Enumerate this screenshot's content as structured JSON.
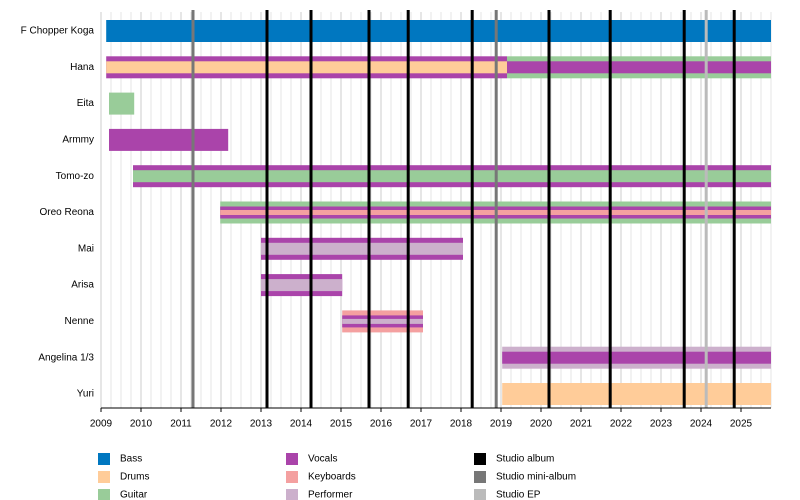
{
  "chart_data": {
    "type": "timeline",
    "xlim": [
      2009,
      2025.75
    ],
    "xticks": [
      2009,
      2010,
      2011,
      2012,
      2013,
      2014,
      2015,
      2016,
      2017,
      2018,
      2019,
      2020,
      2021,
      2022,
      2023,
      2024,
      2025
    ],
    "minor_grid_step": 0.25,
    "roles": [
      {
        "name": "Bass",
        "color": "#0077c0"
      },
      {
        "name": "Drums",
        "color": "#ffcc99"
      },
      {
        "name": "Guitar",
        "color": "#99cc99"
      },
      {
        "name": "Vocals",
        "color": "#aa44aa"
      },
      {
        "name": "Keyboards",
        "color": "#f4a0a0"
      },
      {
        "name": "Performer",
        "color": "#ccb0cc"
      }
    ],
    "releases": [
      {
        "name": "Studio album",
        "color": "#000000",
        "dates": [
          2013.15,
          2014.25,
          2015.7,
          2016.68,
          2018.28,
          2020.2,
          2021.73,
          2023.58,
          2024.83
        ]
      },
      {
        "name": "Studio mini-album",
        "color": "#777777",
        "dates": [
          2011.3,
          2018.88
        ]
      },
      {
        "name": "Studio EP",
        "color": "#bbbbbb",
        "dates": [
          2024.13
        ]
      }
    ],
    "members": [
      {
        "name": "F Chopper Koga",
        "layers": [
          [
            {
              "role": "Bass",
              "start": 2009.13,
              "end": 2025.75
            }
          ]
        ]
      },
      {
        "name": "Hana",
        "layers": [
          [
            {
              "role": "Vocals",
              "start": 2009.13,
              "end": 2019.15
            },
            {
              "role": "Guitar",
              "start": 2019.15,
              "end": 2025.75
            }
          ],
          [
            {
              "role": "Drums",
              "start": 2009.13,
              "end": 2019.15
            },
            {
              "role": "Vocals",
              "start": 2019.15,
              "end": 2025.75
            }
          ]
        ]
      },
      {
        "name": "Eita",
        "layers": [
          [
            {
              "role": "Guitar",
              "start": 2009.2,
              "end": 2009.83
            }
          ]
        ]
      },
      {
        "name": "Armmy",
        "layers": [
          [
            {
              "role": "Vocals",
              "start": 2009.2,
              "end": 2012.18
            }
          ]
        ]
      },
      {
        "name": "Tomo-zo",
        "layers": [
          [
            {
              "role": "Vocals",
              "start": 2009.8,
              "end": 2025.75
            }
          ],
          [
            {
              "role": "Guitar",
              "start": 2009.8,
              "end": 2025.75
            }
          ]
        ]
      },
      {
        "name": "Oreo Reona",
        "layers": [
          [
            {
              "role": "Guitar",
              "start": 2011.98,
              "end": 2025.75
            }
          ],
          [
            {
              "role": "Vocals",
              "start": 2011.98,
              "end": 2025.75
            }
          ],
          [
            {
              "role": "Keyboards",
              "start": 2011.98,
              "end": 2025.75
            }
          ]
        ]
      },
      {
        "name": "Mai",
        "layers": [
          [
            {
              "role": "Vocals",
              "start": 2013.0,
              "end": 2018.05
            }
          ],
          [
            {
              "role": "Performer",
              "start": 2013.0,
              "end": 2018.05
            }
          ]
        ]
      },
      {
        "name": "Arisa",
        "layers": [
          [
            {
              "role": "Vocals",
              "start": 2013.0,
              "end": 2015.03
            }
          ],
          [
            {
              "role": "Performer",
              "start": 2013.0,
              "end": 2015.03
            }
          ]
        ]
      },
      {
        "name": "Nenne",
        "layers": [
          [
            {
              "role": "Keyboards",
              "start": 2015.03,
              "end": 2017.05
            }
          ],
          [
            {
              "role": "Vocals",
              "start": 2015.03,
              "end": 2017.05
            }
          ],
          [
            {
              "role": "Performer",
              "start": 2015.03,
              "end": 2017.05
            }
          ]
        ]
      },
      {
        "name": "Angelina 1/3",
        "layers": [
          [
            {
              "role": "Performer",
              "start": 2019.03,
              "end": 2025.75
            }
          ],
          [
            {
              "role": "Vocals",
              "start": 2019.03,
              "end": 2025.75
            }
          ]
        ]
      },
      {
        "name": "Yuri",
        "layers": [
          [
            {
              "role": "Drums",
              "start": 2019.03,
              "end": 2025.75
            }
          ]
        ]
      }
    ]
  }
}
